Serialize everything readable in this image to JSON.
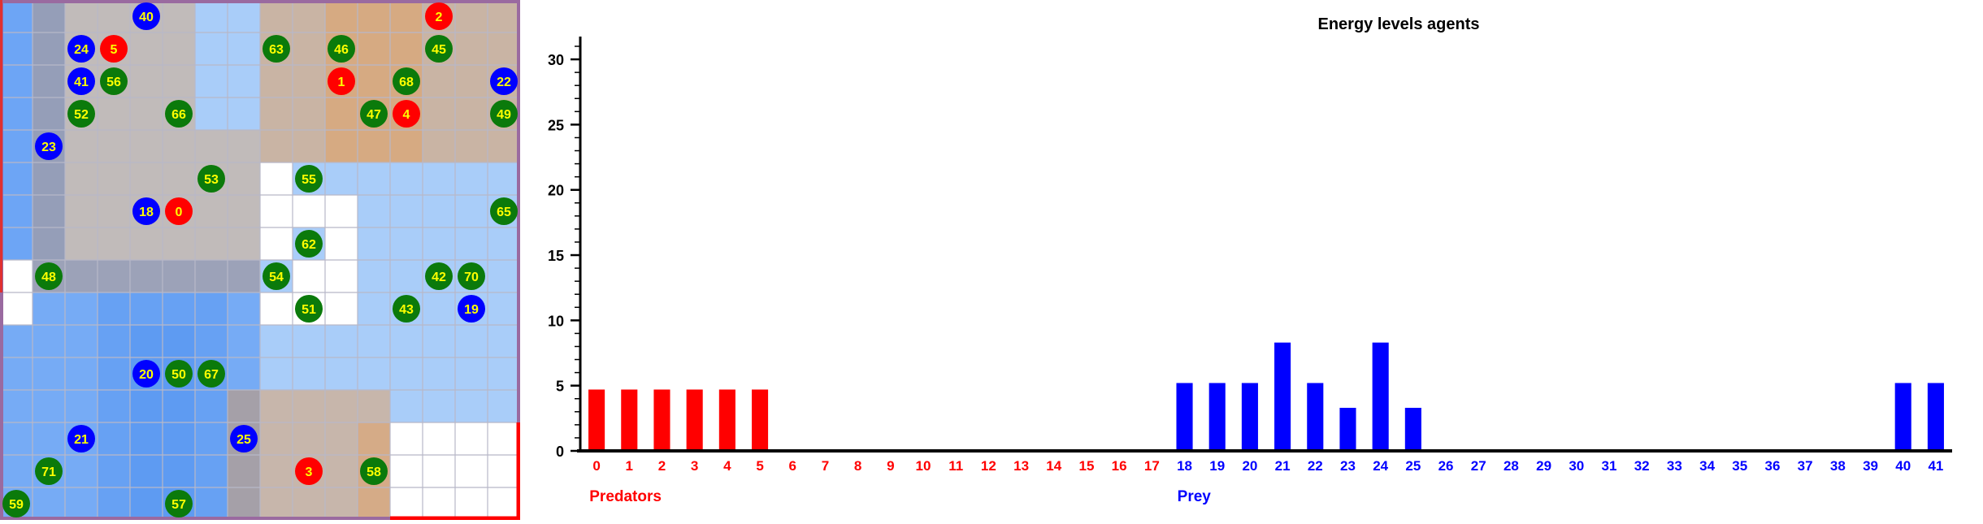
{
  "colors": {
    "predator": "#ff0000",
    "prey": "#0000ff",
    "plant": "#0b7a0b",
    "agent_text": "#ffff00",
    "predator_zone": "#ff8c1a",
    "prey_zone": "#4d8ff2",
    "plain_cell": "#a9cdf9"
  },
  "grid": {
    "cols": 16,
    "rows": 16,
    "fill_zones": [
      {
        "kind": "prey",
        "c0": 0,
        "c1": 2,
        "r0": 0,
        "r1": 8,
        "alpha": 0.65
      },
      {
        "kind": "prey",
        "c0": 0,
        "c1": 8,
        "r0": 8,
        "r1": 16,
        "alpha": 0.55
      },
      {
        "kind": "prey",
        "c0": 3,
        "c1": 7,
        "r0": 9,
        "r1": 16,
        "alpha": 0.35
      },
      {
        "kind": "prey",
        "c0": 4,
        "c1": 6,
        "r0": 10,
        "r1": 16,
        "alpha": 0.35
      },
      {
        "kind": "predator",
        "c0": 1,
        "c1": 6,
        "r0": 0,
        "r1": 4,
        "alpha": 0.28
      },
      {
        "kind": "predator",
        "c0": 1,
        "c1": 8,
        "r0": 4,
        "r1": 9,
        "alpha": 0.28
      },
      {
        "kind": "predator",
        "c0": 8,
        "c1": 16,
        "r0": 0,
        "r1": 5,
        "alpha": 0.38
      },
      {
        "kind": "predator",
        "c0": 10,
        "c1": 13,
        "r0": 0,
        "r1": 5,
        "alpha": 0.25
      },
      {
        "kind": "predator",
        "c0": 7,
        "c1": 12,
        "r0": 12,
        "r1": 16,
        "alpha": 0.35
      },
      {
        "kind": "predator",
        "c0": 11,
        "c1": 12,
        "r0": 13,
        "r1": 16,
        "alpha": 0.25
      }
    ],
    "white_cells": [
      [
        8,
        5
      ],
      [
        8,
        6
      ],
      [
        9,
        6
      ],
      [
        10,
        6
      ],
      [
        8,
        7
      ],
      [
        10,
        7
      ],
      [
        9,
        8
      ],
      [
        10,
        8
      ],
      [
        8,
        9
      ],
      [
        9,
        9
      ],
      [
        10,
        9
      ],
      [
        0,
        8
      ],
      [
        0,
        9
      ],
      [
        12,
        13
      ],
      [
        13,
        13
      ],
      [
        14,
        13
      ],
      [
        15,
        13
      ],
      [
        12,
        14
      ],
      [
        13,
        14
      ],
      [
        14,
        14
      ],
      [
        15,
        14
      ],
      [
        12,
        15
      ],
      [
        13,
        15
      ],
      [
        14,
        15
      ],
      [
        15,
        15
      ]
    ],
    "agents": [
      {
        "label": "40",
        "kind": "prey",
        "col": 4,
        "row": 0
      },
      {
        "label": "2",
        "kind": "predator",
        "col": 13,
        "row": 0
      },
      {
        "label": "24",
        "kind": "prey",
        "col": 2,
        "row": 1
      },
      {
        "label": "5",
        "kind": "predator",
        "col": 3,
        "row": 1
      },
      {
        "label": "63",
        "kind": "plant",
        "col": 8,
        "row": 1
      },
      {
        "label": "46",
        "kind": "plant",
        "col": 10,
        "row": 1
      },
      {
        "label": "45",
        "kind": "plant",
        "col": 13,
        "row": 1
      },
      {
        "label": "41",
        "kind": "prey",
        "col": 2,
        "row": 2
      },
      {
        "label": "56",
        "kind": "plant",
        "col": 3,
        "row": 2
      },
      {
        "label": "1",
        "kind": "predator",
        "col": 10,
        "row": 2
      },
      {
        "label": "68",
        "kind": "plant",
        "col": 12,
        "row": 2
      },
      {
        "label": "22",
        "kind": "prey",
        "col": 15,
        "row": 2
      },
      {
        "label": "52",
        "kind": "plant",
        "col": 2,
        "row": 3
      },
      {
        "label": "66",
        "kind": "plant",
        "col": 5,
        "row": 3
      },
      {
        "label": "47",
        "kind": "plant",
        "col": 11,
        "row": 3
      },
      {
        "label": "4",
        "kind": "predator",
        "col": 12,
        "row": 3
      },
      {
        "label": "49",
        "kind": "plant",
        "col": 15,
        "row": 3
      },
      {
        "label": "23",
        "kind": "prey",
        "col": 1,
        "row": 4
      },
      {
        "label": "53",
        "kind": "plant",
        "col": 6,
        "row": 5
      },
      {
        "label": "55",
        "kind": "plant",
        "col": 9,
        "row": 5
      },
      {
        "label": "18",
        "kind": "prey",
        "col": 4,
        "row": 6
      },
      {
        "label": "0",
        "kind": "predator",
        "col": 5,
        "row": 6
      },
      {
        "label": "65",
        "kind": "plant",
        "col": 15,
        "row": 6
      },
      {
        "label": "62",
        "kind": "plant",
        "col": 9,
        "row": 7
      },
      {
        "label": "48",
        "kind": "plant",
        "col": 1,
        "row": 8
      },
      {
        "label": "54",
        "kind": "plant",
        "col": 8,
        "row": 8
      },
      {
        "label": "42",
        "kind": "plant",
        "col": 13,
        "row": 8
      },
      {
        "label": "70",
        "kind": "plant",
        "col": 14,
        "row": 8
      },
      {
        "label": "51",
        "kind": "plant",
        "col": 9,
        "row": 9
      },
      {
        "label": "43",
        "kind": "plant",
        "col": 12,
        "row": 9
      },
      {
        "label": "19",
        "kind": "prey",
        "col": 14,
        "row": 9
      },
      {
        "label": "20",
        "kind": "prey",
        "col": 4,
        "row": 11
      },
      {
        "label": "50",
        "kind": "plant",
        "col": 5,
        "row": 11
      },
      {
        "label": "67",
        "kind": "plant",
        "col": 6,
        "row": 11
      },
      {
        "label": "21",
        "kind": "prey",
        "col": 2,
        "row": 13
      },
      {
        "label": "25",
        "kind": "prey",
        "col": 7,
        "row": 13
      },
      {
        "label": "71",
        "kind": "plant",
        "col": 1,
        "row": 14
      },
      {
        "label": "3",
        "kind": "predator",
        "col": 9,
        "row": 14
      },
      {
        "label": "58",
        "kind": "plant",
        "col": 11,
        "row": 14
      },
      {
        "label": "59",
        "kind": "plant",
        "col": 0,
        "row": 15
      },
      {
        "label": "57",
        "kind": "plant",
        "col": 5,
        "row": 15
      }
    ]
  },
  "chart_data": {
    "type": "bar",
    "title": "Energy levels agents",
    "xlabel": "",
    "ylabel": "",
    "ylim": [
      0,
      31
    ],
    "yticks": [
      0,
      5,
      10,
      15,
      20,
      25,
      30
    ],
    "grid": false,
    "categories": [
      "0",
      "1",
      "2",
      "3",
      "4",
      "5",
      "6",
      "7",
      "8",
      "9",
      "10",
      "11",
      "12",
      "13",
      "14",
      "15",
      "16",
      "17",
      "18",
      "19",
      "20",
      "21",
      "22",
      "23",
      "24",
      "25",
      "26",
      "27",
      "28",
      "29",
      "30",
      "31",
      "32",
      "33",
      "34",
      "35",
      "36",
      "37",
      "38",
      "39",
      "40",
      "41"
    ],
    "values": [
      4.7,
      4.7,
      4.7,
      4.7,
      4.7,
      4.7,
      0,
      0,
      0,
      0,
      0,
      0,
      0,
      0,
      0,
      0,
      0,
      0,
      5.2,
      5.2,
      5.2,
      8.3,
      5.2,
      3.3,
      8.3,
      3.3,
      0,
      0,
      0,
      0,
      0,
      0,
      0,
      0,
      0,
      0,
      0,
      0,
      0,
      0,
      5.2,
      5.2
    ],
    "groups": [
      {
        "name": "Predators",
        "start": 0,
        "end": 17,
        "color": "#ff0000"
      },
      {
        "name": "Prey",
        "start": 18,
        "end": 41,
        "color": "#0000ff"
      }
    ]
  }
}
